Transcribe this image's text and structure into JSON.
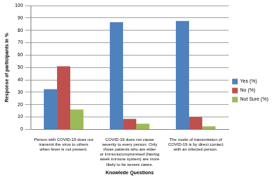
{
  "chart_data": {
    "type": "bar",
    "categories": [
      "Person with COVID-19 does not transmit the virus to others when fever is not present.",
      "COVID-19 does not cause severity to every person. Only those patients who are elder or immunocompromised (having week immune system) are more likely to be severe cases.",
      "The mode of transmission of COVID-19 is by direct contact with an infected person."
    ],
    "series": [
      {
        "name": "Yes (%)",
        "color": "#4f81bd",
        "values": [
          32.5,
          86.5,
          87.5
        ]
      },
      {
        "name": "No (%)",
        "color": "#c0504d",
        "values": [
          51,
          8.5,
          10
        ]
      },
      {
        "name": "Not Sure (%)",
        "color": "#9bbb59",
        "values": [
          16,
          4.5,
          2.5
        ]
      }
    ],
    "x_label": "Knowlede Questions",
    "y_label": "Response of participants in %",
    "ylim": [
      0,
      100
    ],
    "yticks": [
      0,
      10,
      20,
      30,
      40,
      50,
      60,
      70,
      80,
      90,
      100
    ],
    "grid": true,
    "legend": "right"
  }
}
